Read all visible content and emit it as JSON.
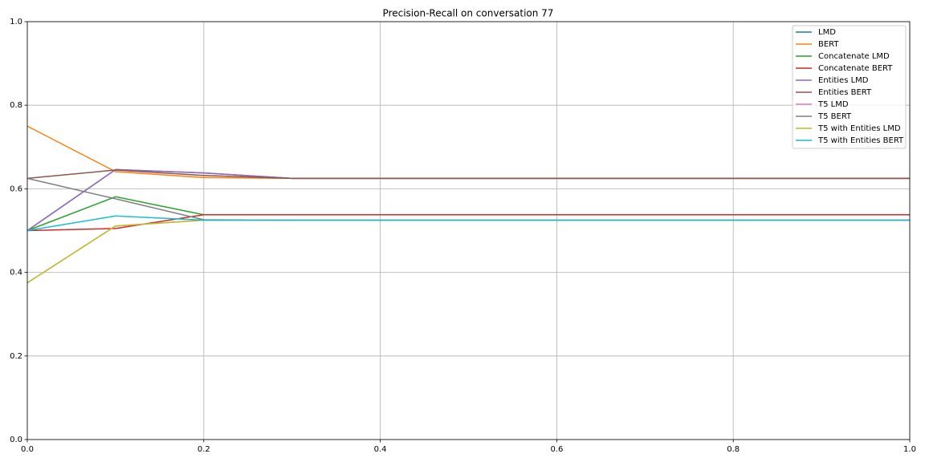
{
  "chart_data": {
    "type": "line",
    "title": "Precision-Recall on conversation 77",
    "x": [
      0,
      0.1,
      0.2,
      0.3,
      0.4,
      0.5,
      0.6,
      0.7,
      0.8,
      0.9,
      1.0
    ],
    "series": [
      {
        "name": "LMD",
        "color": "#1f77b4",
        "values": [
          0.5,
          0.646,
          0.638,
          0.625,
          0.625,
          0.625,
          0.625,
          0.625,
          0.625,
          0.625,
          0.625
        ]
      },
      {
        "name": "BERT",
        "color": "#ff7f0e",
        "values": [
          0.75,
          0.641,
          0.627,
          0.625,
          0.625,
          0.625,
          0.625,
          0.625,
          0.625,
          0.625,
          0.625
        ]
      },
      {
        "name": "Concatenate LMD",
        "color": "#2ca02c",
        "values": [
          0.5,
          0.581,
          0.538,
          0.538,
          0.538,
          0.538,
          0.538,
          0.538,
          0.538,
          0.538,
          0.538
        ]
      },
      {
        "name": "Concatenate BERT",
        "color": "#d62728",
        "values": [
          0.5,
          0.505,
          0.538,
          0.538,
          0.538,
          0.538,
          0.538,
          0.538,
          0.538,
          0.538,
          0.538
        ]
      },
      {
        "name": "Entities LMD",
        "color": "#9467bd",
        "values": [
          0.5,
          0.646,
          0.638,
          0.625,
          0.625,
          0.625,
          0.625,
          0.625,
          0.625,
          0.625,
          0.625
        ]
      },
      {
        "name": "Entities BERT",
        "color": "#8c564b",
        "values": [
          0.625,
          0.645,
          0.632,
          0.625,
          0.625,
          0.625,
          0.625,
          0.625,
          0.625,
          0.625,
          0.625
        ]
      },
      {
        "name": "T5 LMD",
        "color": "#e377c2",
        "values": [
          0.375,
          0.511,
          0.525,
          0.525,
          0.525,
          0.525,
          0.525,
          0.525,
          0.525,
          0.525,
          0.525
        ]
      },
      {
        "name": "T5 BERT",
        "color": "#7f7f7f",
        "values": [
          0.625,
          0.576,
          0.526,
          0.525,
          0.525,
          0.525,
          0.525,
          0.525,
          0.525,
          0.525,
          0.525
        ]
      },
      {
        "name": "T5 with Entities LMD",
        "color": "#bcbd22",
        "values": [
          0.375,
          0.511,
          0.525,
          0.525,
          0.525,
          0.525,
          0.525,
          0.525,
          0.525,
          0.525,
          0.525
        ]
      },
      {
        "name": "T5 with Entities BERT",
        "color": "#17becf",
        "values": [
          0.5,
          0.535,
          0.525,
          0.525,
          0.525,
          0.525,
          0.525,
          0.525,
          0.525,
          0.525,
          0.525
        ]
      }
    ],
    "xlim": [
      0,
      1
    ],
    "ylim": [
      0,
      1
    ],
    "xticks": [
      {
        "value": 0,
        "label": "0.0"
      },
      0.2,
      0.4,
      0.6,
      0.8,
      {
        "value": 1,
        "label": "1.0"
      }
    ],
    "yticks": [
      {
        "value": 0,
        "label": "0.0"
      },
      0.2,
      0.4,
      0.6,
      0.8,
      {
        "value": 1,
        "label": "1.0"
      }
    ],
    "grid": true,
    "legend": "upper right"
  }
}
